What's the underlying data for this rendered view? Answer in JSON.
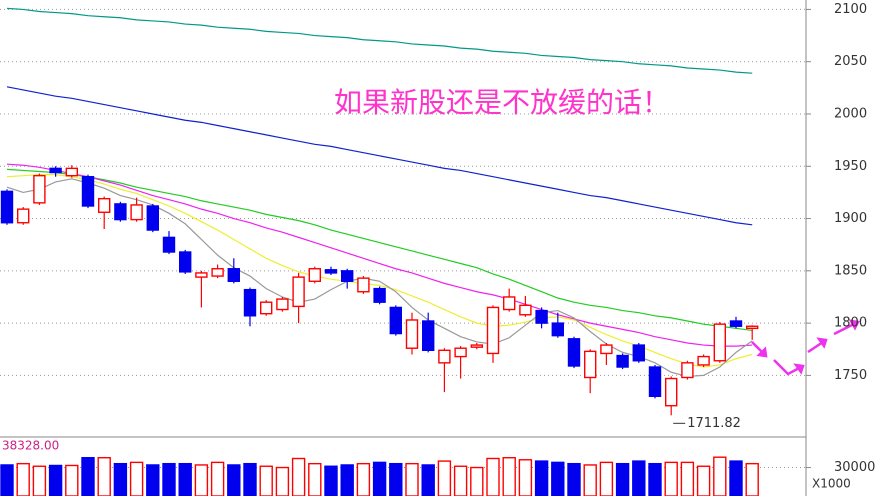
{
  "chart_data": {
    "type": "candlestick",
    "annotation": "如果新股还是不放缓的话！",
    "annotation_color": "#ff33cc",
    "ylim": [
      1693,
      2109
    ],
    "yticks": [
      1750,
      1800,
      1850,
      1900,
      1950,
      2000,
      2050,
      2100
    ],
    "grid": true,
    "up_color": "#ff0000",
    "down_color": "#0000ee",
    "candles": {
      "open": [
        1926,
        1896,
        1915,
        1948,
        1941,
        1940,
        1906,
        1914,
        1899,
        1912,
        1882,
        1868,
        1844,
        1845,
        1852,
        1832,
        1809,
        1813,
        1816,
        1840,
        1851,
        1850,
        1830,
        1833,
        1815,
        1776,
        1802,
        1762,
        1768,
        1777,
        1771,
        1813,
        1808,
        1812,
        1800,
        1785,
        1748,
        1771,
        1769,
        1779,
        1758,
        1721,
        1748,
        1760,
        1764,
        1802,
        1795
      ],
      "high": [
        1928,
        1911,
        1943,
        1950,
        1951,
        1942,
        1921,
        1916,
        1920,
        1914,
        1888,
        1870,
        1850,
        1856,
        1862,
        1834,
        1822,
        1825,
        1848,
        1854,
        1854,
        1852,
        1845,
        1835,
        1817,
        1810,
        1810,
        1776,
        1778,
        1781,
        1817,
        1833,
        1826,
        1815,
        1810,
        1787,
        1775,
        1781,
        1771,
        1781,
        1760,
        1749,
        1764,
        1770,
        1801,
        1806,
        1798
      ],
      "low": [
        1894,
        1894,
        1913,
        1940,
        1939,
        1910,
        1890,
        1897,
        1897,
        1887,
        1866,
        1847,
        1815,
        1843,
        1838,
        1797,
        1807,
        1811,
        1800,
        1838,
        1846,
        1833,
        1828,
        1818,
        1788,
        1770,
        1772,
        1734,
        1747,
        1775,
        1762,
        1811,
        1806,
        1795,
        1786,
        1757,
        1733,
        1760,
        1756,
        1762,
        1728,
        1711.82,
        1746,
        1758,
        1762,
        1795,
        1784
      ],
      "close": [
        1896,
        1909,
        1941,
        1944,
        1948,
        1912,
        1919,
        1899,
        1913,
        1889,
        1868,
        1849,
        1848,
        1852,
        1840,
        1807,
        1820,
        1823,
        1844,
        1852,
        1848,
        1840,
        1843,
        1820,
        1790,
        1803,
        1774,
        1774,
        1776,
        1779,
        1815,
        1825,
        1817,
        1800,
        1788,
        1759,
        1773,
        1779,
        1758,
        1764,
        1730,
        1747,
        1762,
        1768,
        1799,
        1797,
        1797
      ]
    },
    "low_mark_index": 41,
    "ma_lines": [
      {
        "color": "#009988",
        "values": [
          2101,
          2100,
          2098,
          2097,
          2096,
          2094,
          2093,
          2092,
          2090,
          2089,
          2088,
          2086,
          2085,
          2083,
          2082,
          2081,
          2079,
          2078,
          2077,
          2075,
          2074,
          2073,
          2071,
          2070,
          2069,
          2067,
          2066,
          2065,
          2063,
          2062,
          2060,
          2059,
          2058,
          2056,
          2055,
          2054,
          2052,
          2051,
          2050,
          2048,
          2047,
          2046,
          2044,
          2043,
          2042,
          2040,
          2039
        ]
      },
      {
        "color": "#1122cc",
        "values": [
          2026,
          2023,
          2020,
          2017,
          2015,
          2012,
          2009,
          2006,
          2003,
          2000,
          1997,
          1994,
          1992,
          1989,
          1986,
          1983,
          1980,
          1977,
          1974,
          1971,
          1969,
          1966,
          1963,
          1960,
          1957,
          1954,
          1951,
          1948,
          1946,
          1943,
          1940,
          1937,
          1934,
          1931,
          1928,
          1925,
          1922,
          1920,
          1917,
          1914,
          1911,
          1908,
          1905,
          1902,
          1899,
          1896,
          1894
        ]
      },
      {
        "color": "#22cc22",
        "values": [
          1947,
          1946,
          1945,
          1944,
          1942,
          1940,
          1937,
          1934,
          1930,
          1927,
          1924,
          1921,
          1917,
          1914,
          1911,
          1908,
          1904,
          1901,
          1898,
          1894,
          1889,
          1885,
          1881,
          1877,
          1873,
          1869,
          1865,
          1861,
          1857,
          1853,
          1847,
          1842,
          1836,
          1830,
          1824,
          1820,
          1817,
          1815,
          1812,
          1810,
          1807,
          1805,
          1802,
          1799,
          1797,
          1795,
          1793
        ]
      },
      {
        "color": "#ee22ee",
        "values": [
          1952,
          1951,
          1949,
          1946,
          1943,
          1940,
          1936,
          1932,
          1927,
          1922,
          1918,
          1914,
          1909,
          1905,
          1900,
          1896,
          1891,
          1887,
          1882,
          1877,
          1872,
          1867,
          1862,
          1857,
          1852,
          1848,
          1843,
          1838,
          1834,
          1830,
          1827,
          1823,
          1818,
          1813,
          1808,
          1804,
          1800,
          1797,
          1794,
          1791,
          1787,
          1784,
          1781,
          1779,
          1778,
          1778,
          1779
        ]
      },
      {
        "color": "#eeee33",
        "values": [
          1940,
          1941,
          1942,
          1942,
          1940,
          1937,
          1933,
          1928,
          1924,
          1918,
          1912,
          1905,
          1897,
          1889,
          1880,
          1871,
          1862,
          1855,
          1849,
          1845,
          1842,
          1840,
          1838,
          1836,
          1832,
          1826,
          1820,
          1813,
          1806,
          1800,
          1797,
          1798,
          1801,
          1805,
          1806,
          1803,
          1796,
          1789,
          1783,
          1778,
          1772,
          1766,
          1761,
          1758,
          1760,
          1766,
          1770
        ]
      },
      {
        "color": "#999999",
        "values": [
          1930,
          1925,
          1928,
          1935,
          1938,
          1934,
          1929,
          1922,
          1918,
          1913,
          1905,
          1895,
          1880,
          1865,
          1853,
          1845,
          1833,
          1825,
          1820,
          1823,
          1832,
          1840,
          1843,
          1840,
          1830,
          1815,
          1803,
          1795,
          1787,
          1782,
          1780,
          1786,
          1798,
          1810,
          1812,
          1805,
          1792,
          1780,
          1772,
          1768,
          1762,
          1753,
          1749,
          1750,
          1758,
          1772,
          1783
        ]
      }
    ],
    "volume": {
      "values": [
        31000,
        31500,
        30500,
        30800,
        30800,
        33800,
        33800,
        31500,
        32000,
        31000,
        31500,
        31500,
        31000,
        32000,
        31000,
        31500,
        30500,
        30000,
        33500,
        31500,
        30500,
        31000,
        31500,
        32000,
        31500,
        31500,
        31000,
        32500,
        30500,
        30000,
        33500,
        33800,
        33000,
        32500,
        32000,
        31500,
        31000,
        32000,
        31500,
        32500,
        31500,
        32000,
        32000,
        30500,
        34000,
        32500,
        31500
      ],
      "ylim": [
        19000,
        38328
      ],
      "yticks": [
        30000
      ],
      "max_label": {
        "value": 38328,
        "label": "38328.00"
      },
      "unit": "X1000"
    }
  }
}
